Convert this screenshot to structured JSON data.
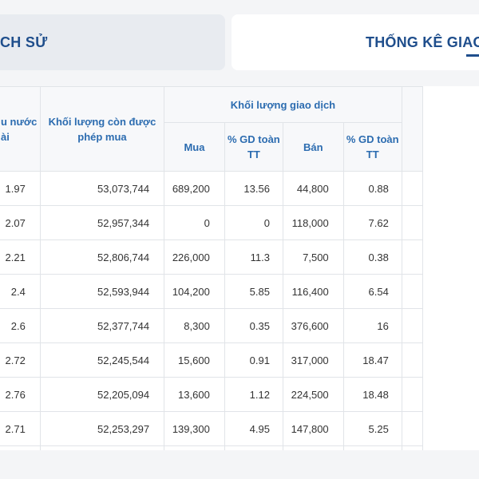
{
  "tabs": {
    "history_label": "CH SỬ",
    "stats_label": "THỐNG KÊ GIAO D"
  },
  "table": {
    "headers": {
      "ratio": "u nước ài",
      "remaining": "Khối lượng còn được phép mua",
      "trade_volume": "Khối lượng giao dịch",
      "buy": "Mua",
      "buy_pct": "% GD toàn TT",
      "sell": "Bán",
      "sell_pct": "% GD toàn TT"
    },
    "rows": [
      {
        "ratio": "1.97",
        "remaining": "53,073,744",
        "buy": "689,200",
        "buy_pct": "13.56",
        "sell": "44,800",
        "sell_pct": "0.88"
      },
      {
        "ratio": "2.07",
        "remaining": "52,957,344",
        "buy": "0",
        "buy_pct": "0",
        "sell": "118,000",
        "sell_pct": "7.62"
      },
      {
        "ratio": "2.21",
        "remaining": "52,806,744",
        "buy": "226,000",
        "buy_pct": "11.3",
        "sell": "7,500",
        "sell_pct": "0.38"
      },
      {
        "ratio": "2.4",
        "remaining": "52,593,944",
        "buy": "104,200",
        "buy_pct": "5.85",
        "sell": "116,400",
        "sell_pct": "6.54"
      },
      {
        "ratio": "2.6",
        "remaining": "52,377,744",
        "buy": "8,300",
        "buy_pct": "0.35",
        "sell": "376,600",
        "sell_pct": "16"
      },
      {
        "ratio": "2.72",
        "remaining": "52,245,544",
        "buy": "15,600",
        "buy_pct": "0.91",
        "sell": "317,000",
        "sell_pct": "18.47"
      },
      {
        "ratio": "2.76",
        "remaining": "52,205,094",
        "buy": "13,600",
        "buy_pct": "1.12",
        "sell": "224,500",
        "sell_pct": "18.48"
      },
      {
        "ratio": "2.71",
        "remaining": "52,253,297",
        "buy": "139,300",
        "buy_pct": "4.95",
        "sell": "147,800",
        "sell_pct": "5.25"
      }
    ]
  }
}
